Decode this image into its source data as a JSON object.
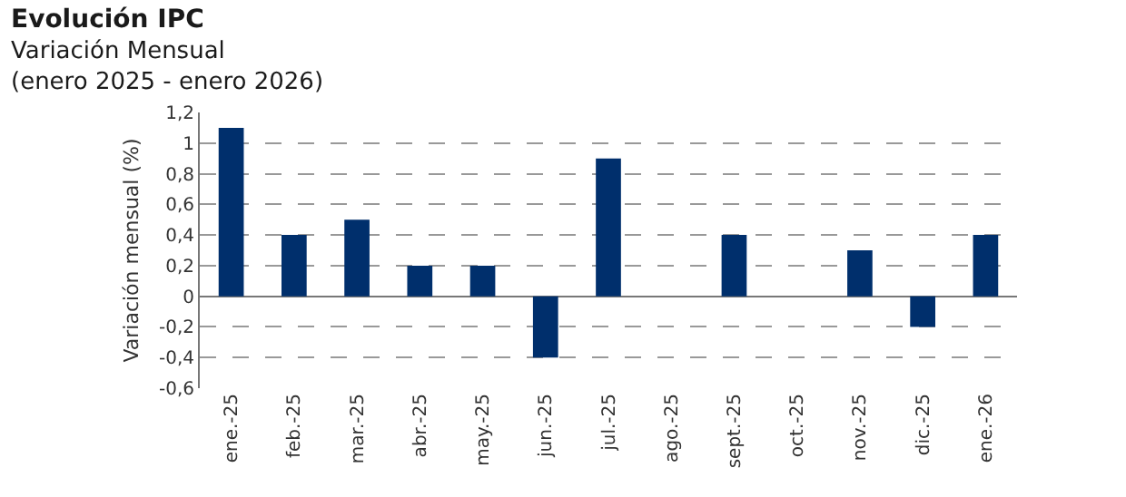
{
  "chart_data": {
    "type": "bar",
    "title": "Evolución IPC",
    "subtitle": "Variación Mensual",
    "annotations": [
      "(enero 2025 - enero 2026)"
    ],
    "ylabel": "Variación mensual (%)",
    "categories": [
      "ene.-25",
      "feb.-25",
      "mar.-25",
      "abr.-25",
      "may.-25",
      "jun.-25",
      "jul.-25",
      "ago.-25",
      "sept.-25",
      "oct.-25",
      "nov.-25",
      "dic.-25",
      "ene.-26"
    ],
    "values": [
      1.1,
      0.4,
      0.5,
      0.2,
      0.2,
      -0.4,
      0.9,
      0,
      0.4,
      0,
      0.3,
      -0.2,
      0.4
    ],
    "color": "#002f6c",
    "ylim": [
      -0.6,
      1.2
    ],
    "yticks": [
      {
        "value": -0.6,
        "label": "-0,6"
      },
      {
        "value": -0.4,
        "label": "-0,4"
      },
      {
        "value": -0.2,
        "label": "-0,2"
      },
      0,
      {
        "value": 0.2,
        "label": "0,2"
      },
      {
        "value": 0.4,
        "label": "0,4"
      },
      {
        "value": 0.6,
        "label": "0,6"
      },
      {
        "value": 0.8,
        "label": "0,8"
      },
      1,
      {
        "value": 1.2,
        "label": "1,2"
      }
    ],
    "grid": "y"
  }
}
